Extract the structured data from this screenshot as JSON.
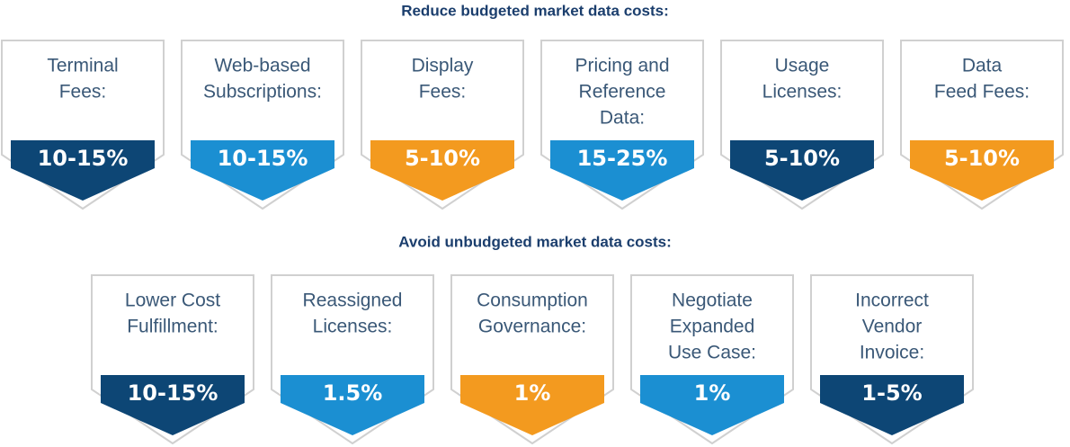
{
  "sections": [
    {
      "title": "Reduce budgeted market data costs:",
      "cards": [
        {
          "label": [
            "Terminal",
            "Fees:"
          ],
          "value": "10-15%",
          "color": "#0d4675"
        },
        {
          "label": [
            "Web-based",
            "Subscriptions:"
          ],
          "value": "10-15%",
          "color": "#1b8fd2"
        },
        {
          "label": [
            "Display",
            "Fees:"
          ],
          "value": "5-10%",
          "color": "#f39a1f"
        },
        {
          "label": [
            "Pricing and",
            "Reference",
            "Data:"
          ],
          "value": "15-25%",
          "color": "#1b8fd2"
        },
        {
          "label": [
            "Usage",
            "Licenses:"
          ],
          "value": "5-10%",
          "color": "#0d4675"
        },
        {
          "label": [
            "Data",
            "Feed Fees:"
          ],
          "value": "5-10%",
          "color": "#f39a1f"
        }
      ]
    },
    {
      "title": "Avoid unbudgeted market data costs:",
      "cards": [
        {
          "label": [
            "Lower Cost",
            "Fulfillment:"
          ],
          "value": "10-15%",
          "color": "#0d4675"
        },
        {
          "label": [
            "Reassigned",
            "Licenses:"
          ],
          "value": "1.5%",
          "color": "#1b8fd2"
        },
        {
          "label": [
            "Consumption",
            "Governance:"
          ],
          "value": "1%",
          "color": "#f39a1f"
        },
        {
          "label": [
            "Negotiate",
            "Expanded",
            "Use Case:"
          ],
          "value": "1%",
          "color": "#1b8fd2"
        },
        {
          "label": [
            "Incorrect",
            "Vendor",
            "Invoice:"
          ],
          "value": "1-5%",
          "color": "#0d4675"
        }
      ]
    }
  ]
}
